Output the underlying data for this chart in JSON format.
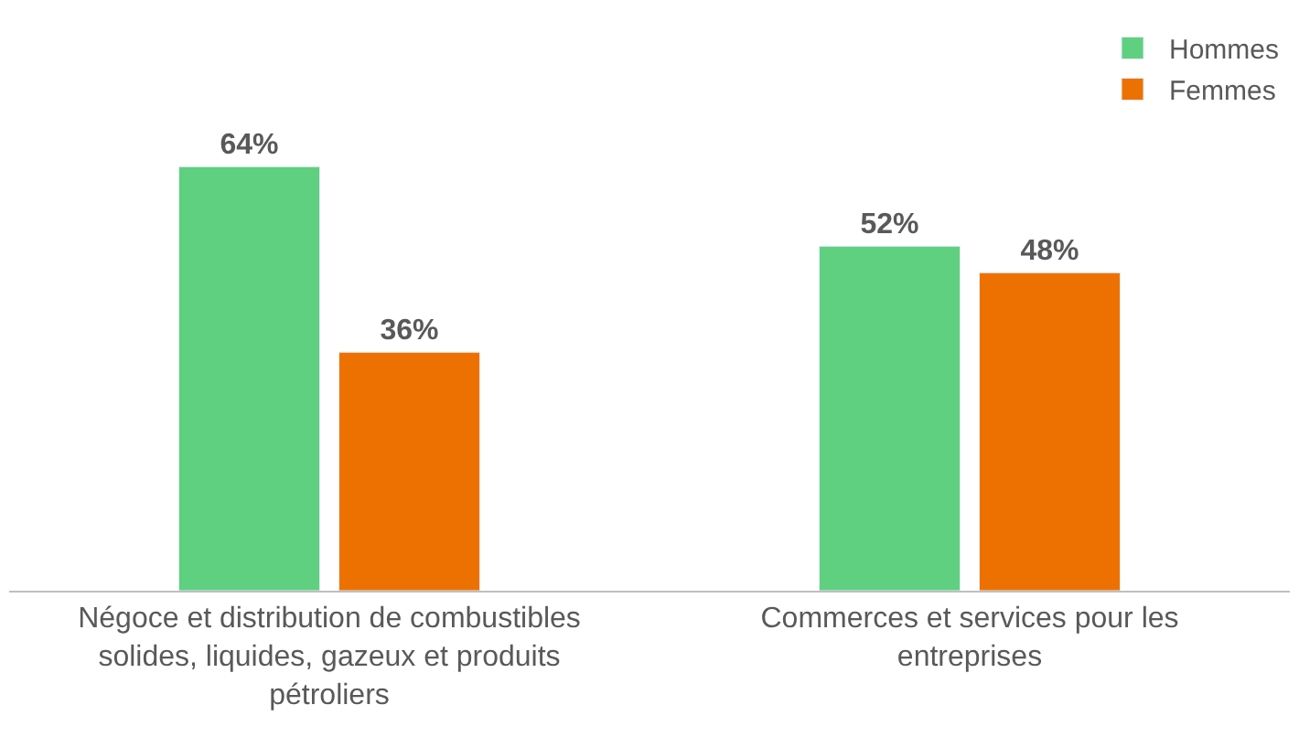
{
  "chart_data": {
    "type": "bar",
    "categories": [
      "Négoce et distribution de combustibles solides, liquides, gazeux et produits pétroliers",
      "Commerces et services pour les entreprises"
    ],
    "series": [
      {
        "name": "Hommes",
        "color": "#5fd07f",
        "values": [
          64,
          52
        ],
        "value_labels": [
          "64%",
          "52%"
        ]
      },
      {
        "name": "Femmes",
        "color": "#ed7100",
        "values": [
          36,
          48
        ],
        "value_labels": [
          "36%",
          "48%"
        ]
      }
    ],
    "legend": "top right"
  }
}
